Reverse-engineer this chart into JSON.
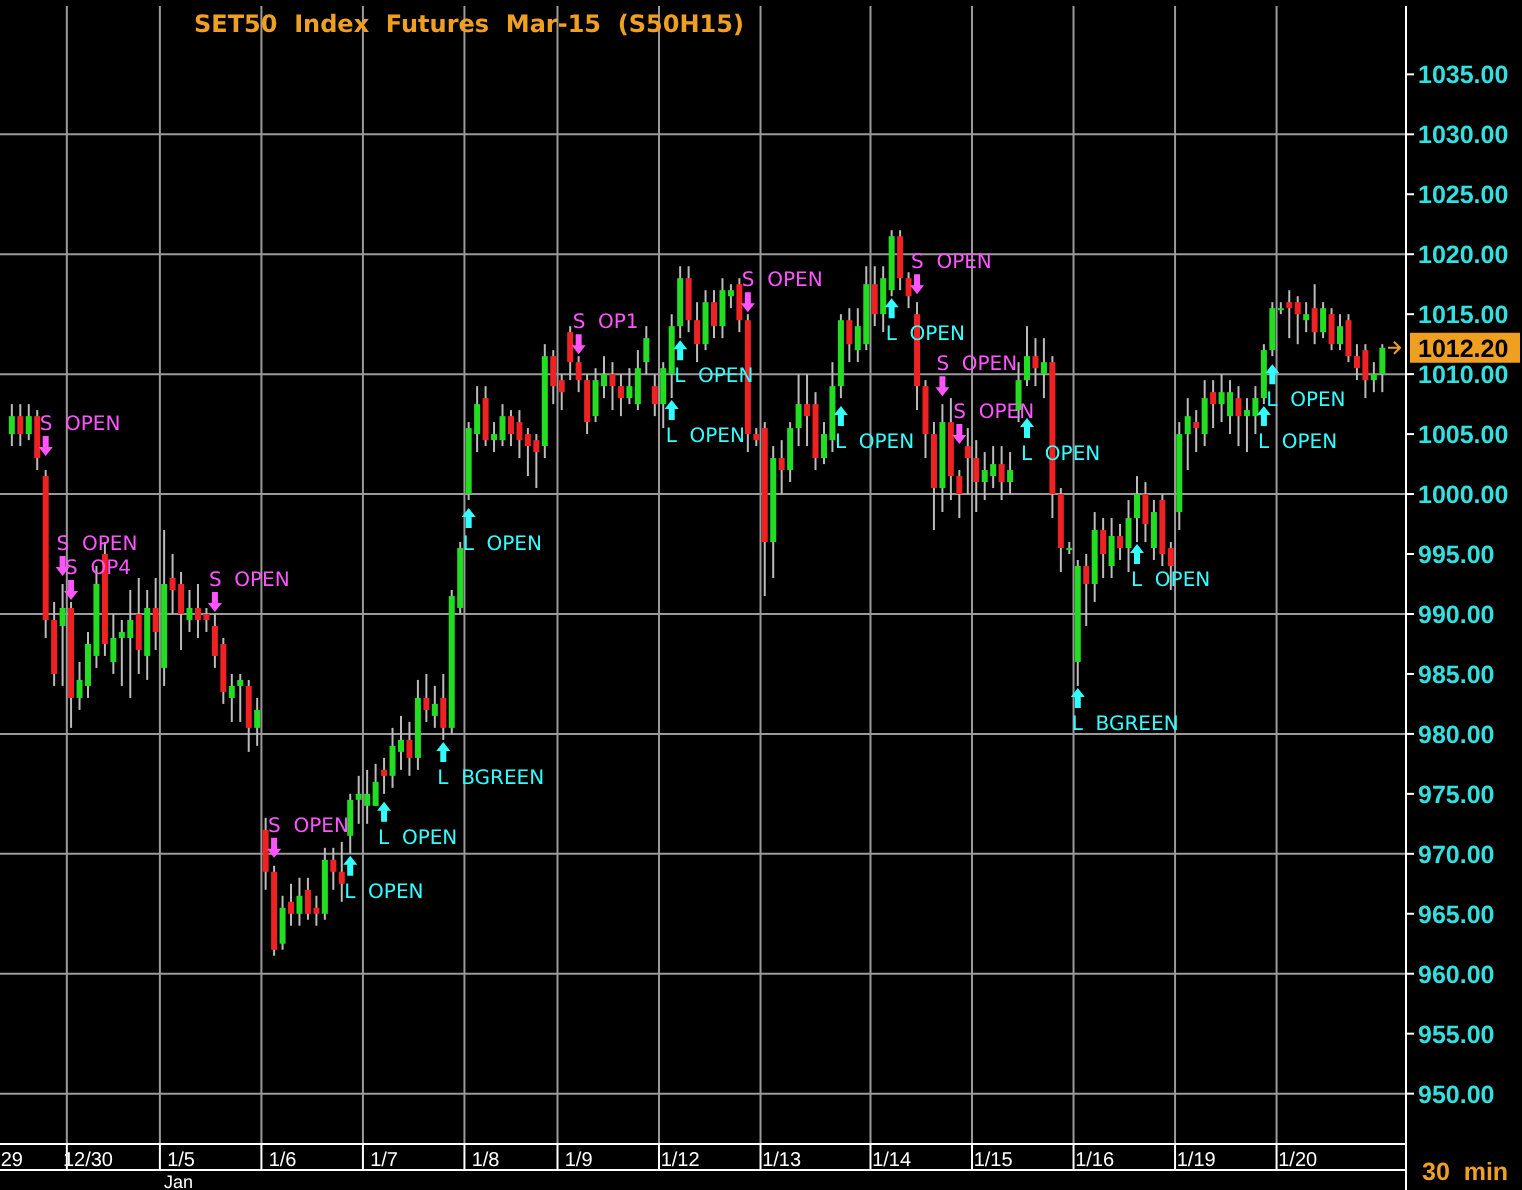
{
  "chart_data": {
    "type": "candlestick",
    "title": "SET50  Index  Futures  Mar-15  (S50H15)",
    "categories": [
      "29",
      null,
      null,
      null,
      null,
      null,
      null,
      null,
      null,
      "12/30",
      null,
      null,
      null,
      null,
      null,
      null,
      null,
      null,
      null,
      null,
      "1/5",
      null,
      null,
      null,
      null,
      null,
      null,
      null,
      null,
      null,
      null,
      null,
      "1/6",
      null,
      null,
      null,
      null,
      null,
      null,
      null,
      null,
      null,
      null,
      null,
      "1/7",
      null,
      null,
      null,
      null,
      null,
      null,
      null,
      null,
      null,
      null,
      null,
      "1/8",
      null,
      null,
      null,
      null,
      null,
      null,
      null,
      null,
      null,
      null,
      "1/9",
      null,
      null,
      null,
      null,
      null,
      null,
      null,
      null,
      null,
      null,
      null,
      "1/12",
      null,
      null,
      null,
      null,
      null,
      null,
      null,
      null,
      null,
      null,
      null,
      "1/13",
      null,
      null,
      null,
      null,
      null,
      null,
      null,
      null,
      null,
      null,
      null,
      null,
      "1/14",
      null,
      null,
      null,
      null,
      null,
      null,
      null,
      null,
      null,
      null,
      null,
      "1/15",
      null,
      null,
      null,
      null,
      null,
      null,
      null,
      null,
      null,
      null,
      null,
      "1/16",
      null,
      null,
      null,
      null,
      null,
      null,
      null,
      null,
      null,
      null,
      null,
      "1/19",
      null,
      null,
      null,
      null,
      null,
      null,
      null,
      null,
      null,
      null,
      null,
      "1/20",
      null,
      null,
      null,
      null,
      null,
      null,
      null,
      null,
      null,
      null
    ],
    "ohlc": [
      [
        1005,
        1007.5,
        1004,
        1006.5
      ],
      [
        1006.5,
        1007.5,
        1004,
        1005
      ],
      [
        1005,
        1007.5,
        1004.5,
        1006.5
      ],
      [
        1006.5,
        1007,
        1002,
        1003
      ],
      [
        1001.5,
        1002,
        988,
        989.5
      ],
      [
        989.5,
        991,
        984,
        985
      ],
      [
        989,
        992.5,
        984,
        990.5
      ],
      [
        990.5,
        991,
        980.5,
        983
      ],
      [
        983,
        986,
        982,
        984.5
      ],
      [
        984,
        988.5,
        983,
        987.5
      ],
      [
        986.5,
        994,
        985.5,
        992.5
      ],
      [
        995,
        996,
        986.5,
        987.5
      ],
      [
        986,
        990,
        985,
        988
      ],
      [
        988,
        989.5,
        984,
        988.5
      ],
      [
        988,
        992,
        983,
        989.5
      ],
      [
        990,
        993,
        985,
        987
      ],
      [
        986.5,
        992,
        984.5,
        990.5
      ],
      [
        990.5,
        993,
        987,
        988.5
      ],
      [
        985.5,
        997,
        984,
        992.5
      ],
      [
        993,
        995,
        990,
        992
      ],
      [
        992.5,
        993.5,
        987,
        990
      ],
      [
        989.5,
        992,
        988.5,
        990.5
      ],
      [
        990.5,
        992.5,
        988,
        989.5
      ],
      [
        990,
        990.5,
        988.5,
        989.5
      ],
      [
        989,
        990,
        985.5,
        986.5
      ],
      [
        987.5,
        988,
        982.5,
        983.5
      ],
      [
        983,
        985,
        981,
        984
      ],
      [
        984,
        985,
        981,
        984.5
      ],
      [
        984,
        984.5,
        978.5,
        980.5
      ],
      [
        980.5,
        983,
        979,
        982
      ],
      [
        972,
        973,
        967,
        968.5
      ],
      [
        968.5,
        969,
        961.5,
        962
      ],
      [
        962.5,
        966.5,
        962,
        965.5
      ],
      [
        966,
        967.5,
        964,
        965
      ],
      [
        965,
        968,
        964,
        966.5
      ],
      [
        967,
        968,
        964.5,
        965
      ],
      [
        965.5,
        966.5,
        964,
        965
      ],
      [
        965,
        970.5,
        964.5,
        969.5
      ],
      [
        969.5,
        970.5,
        967,
        968.5
      ],
      [
        968.5,
        971,
        966,
        967.5
      ],
      [
        971.5,
        975,
        970,
        974.5
      ],
      [
        974.5,
        976.5,
        972.5,
        975
      ],
      [
        974,
        977,
        972.5,
        975
      ],
      [
        974,
        977.5,
        974,
        976
      ],
      [
        977,
        978,
        975,
        976.5
      ],
      [
        976.5,
        980.5,
        975.5,
        979
      ],
      [
        978.5,
        981.5,
        977,
        979.5
      ],
      [
        979.5,
        981,
        976.5,
        978
      ],
      [
        978,
        984.5,
        977,
        983
      ],
      [
        983,
        985,
        981,
        982
      ],
      [
        981.5,
        984,
        980.5,
        982.5
      ],
      [
        983,
        985,
        979.5,
        980.5
      ],
      [
        980.5,
        992,
        980,
        991.5
      ],
      [
        990.5,
        996,
        990,
        995.5
      ],
      [
        1000,
        1006,
        999.5,
        1005.5
      ],
      [
        1005,
        1009,
        1003.5,
        1007.5
      ],
      [
        1008,
        1009,
        1004,
        1004.5
      ],
      [
        1004.5,
        1006,
        1003.5,
        1005
      ],
      [
        1004.5,
        1007.5,
        1004,
        1006.5
      ],
      [
        1006.5,
        1007,
        1004,
        1005
      ],
      [
        1006,
        1007,
        1003,
        1004.5
      ],
      [
        1005,
        1005.5,
        1001.5,
        1004
      ],
      [
        1004.5,
        1005,
        1000.5,
        1003.5
      ],
      [
        1004,
        1012.5,
        1003,
        1011.5
      ],
      [
        1011.5,
        1012,
        1007.5,
        1009
      ],
      [
        1009.5,
        1010,
        1007,
        1008.5
      ],
      [
        1013.5,
        1014,
        1009.5,
        1011
      ],
      [
        1011,
        1011.5,
        1008.5,
        1009.5
      ],
      [
        1009.5,
        1010,
        1005,
        1006
      ],
      [
        1006.5,
        1010.5,
        1006,
        1009.5
      ],
      [
        1009,
        1011.5,
        1008,
        1010
      ],
      [
        1010,
        1011,
        1007,
        1009
      ],
      [
        1009,
        1010,
        1006.5,
        1008
      ],
      [
        1008,
        1010.5,
        1007.5,
        1009
      ],
      [
        1007.5,
        1012,
        1007,
        1010.5
      ],
      [
        1011,
        1014,
        1010,
        1013
      ],
      [
        1009,
        1010,
        1006.5,
        1007.5
      ],
      [
        1007.5,
        1011,
        1005.5,
        1010.5
      ],
      [
        1010,
        1015,
        1008,
        1014
      ],
      [
        1014,
        1019,
        1013,
        1018
      ],
      [
        1018,
        1019,
        1013.5,
        1014.5
      ],
      [
        1014.5,
        1016,
        1011,
        1012.5
      ],
      [
        1012.5,
        1017,
        1012,
        1016
      ],
      [
        1016,
        1017,
        1013,
        1014
      ],
      [
        1014,
        1018,
        1013,
        1017
      ],
      [
        1016.5,
        1017.5,
        1015.5,
        1017
      ],
      [
        1017.5,
        1018,
        1013.5,
        1014.5
      ],
      [
        1014.5,
        1015,
        1003.5,
        1005
      ],
      [
        1005,
        1005.5,
        1004,
        1004.5
      ],
      [
        1005.5,
        1006,
        991.5,
        996
      ],
      [
        996,
        1004,
        993,
        1003
      ],
      [
        1003,
        1004.5,
        1000,
        1002
      ],
      [
        1002,
        1006,
        1001,
        1005.5
      ],
      [
        1005.5,
        1010,
        1004,
        1007.5
      ],
      [
        1007.5,
        1010,
        1004,
        1006.5
      ],
      [
        1007.5,
        1008.5,
        1002,
        1003
      ],
      [
        1003,
        1006,
        1002.5,
        1005
      ],
      [
        1004.5,
        1011,
        1003.5,
        1009
      ],
      [
        1009,
        1015,
        1008,
        1014.5
      ],
      [
        1014.5,
        1015.5,
        1011,
        1012.5
      ],
      [
        1012,
        1015.5,
        1011,
        1014
      ],
      [
        1012.5,
        1019,
        1012,
        1017.5
      ],
      [
        1017.5,
        1019,
        1014,
        1015
      ],
      [
        1015,
        1019,
        1013.5,
        1018
      ],
      [
        1017,
        1022,
        1016.5,
        1021.5
      ],
      [
        1021.5,
        1022,
        1017,
        1018
      ],
      [
        1018,
        1018.5,
        1015.5,
        1016.5
      ],
      [
        1015,
        1016,
        1007,
        1009
      ],
      [
        1009,
        1009.5,
        1003,
        1005
      ],
      [
        1005,
        1006,
        997,
        1000.5
      ],
      [
        1000.5,
        1007.5,
        998.5,
        1006
      ],
      [
        1006,
        1008,
        999.5,
        1001.5
      ],
      [
        1001.5,
        1002,
        998,
        1000
      ],
      [
        1004,
        1005.5,
        1000,
        1003
      ],
      [
        1003,
        1004.5,
        998.5,
        1001
      ],
      [
        1001,
        1003.5,
        999.5,
        1002
      ],
      [
        1001.5,
        1004,
        1000.5,
        1002.5
      ],
      [
        1002.5,
        1004,
        999.5,
        1001
      ],
      [
        1001,
        1003.5,
        1000,
        1002
      ],
      [
        1007,
        1011,
        1006,
        1009.5
      ],
      [
        1009.5,
        1014,
        1009,
        1011.5
      ],
      [
        1011.5,
        1013,
        1009,
        1010.5
      ],
      [
        1010,
        1013,
        1008,
        1011
      ],
      [
        1011,
        1011.5,
        998,
        1000
      ],
      [
        1000,
        1000.5,
        993.5,
        995.5
      ],
      [
        995.5,
        996,
        995,
        995.5
      ],
      [
        986,
        994.5,
        984,
        994
      ],
      [
        994,
        995,
        989,
        992.5
      ],
      [
        992.5,
        998.5,
        991,
        997
      ],
      [
        997,
        998,
        993,
        995
      ],
      [
        994,
        998,
        993,
        996.5
      ],
      [
        996.5,
        997.5,
        994.5,
        995.5
      ],
      [
        995.5,
        999.5,
        993.5,
        998
      ],
      [
        998,
        1001.5,
        996,
        1000
      ],
      [
        1000,
        1001,
        996,
        997.5
      ],
      [
        995.5,
        999.5,
        994.5,
        998.5
      ],
      [
        999.5,
        1000,
        994,
        995
      ],
      [
        995.5,
        996,
        992,
        994
      ],
      [
        998.5,
        1006,
        997,
        1005
      ],
      [
        1005,
        1008,
        1002,
        1006.5
      ],
      [
        1006,
        1007,
        1003.5,
        1005.5
      ],
      [
        1005,
        1009.5,
        1004,
        1008
      ],
      [
        1008.5,
        1009.5,
        1005.5,
        1007.5
      ],
      [
        1007.5,
        1010,
        1006,
        1008.5
      ],
      [
        1006.5,
        1009.5,
        1005,
        1008.5
      ],
      [
        1008,
        1009,
        1004,
        1006.5
      ],
      [
        1006.5,
        1008,
        1003.5,
        1007
      ],
      [
        1006.5,
        1009,
        1005,
        1008
      ],
      [
        1008,
        1012.5,
        1007.5,
        1012
      ],
      [
        1012,
        1016,
        1011.5,
        1015.5
      ],
      [
        1015.5,
        1016,
        1015,
        1015.5
      ],
      [
        1016,
        1017,
        1013,
        1015.5
      ],
      [
        1016,
        1016.5,
        1012.5,
        1015
      ],
      [
        1014.5,
        1016,
        1013.5,
        1015
      ],
      [
        1015.5,
        1017.5,
        1012.5,
        1013.5
      ],
      [
        1013.5,
        1016,
        1013,
        1015.5
      ],
      [
        1015,
        1015.5,
        1012,
        1012.5
      ],
      [
        1012.5,
        1015,
        1012,
        1014
      ],
      [
        1014.5,
        1015,
        1011,
        1011.5
      ],
      [
        1011.5,
        1012.5,
        1009.5,
        1010.5
      ],
      [
        1012,
        1012.5,
        1008,
        1009.5
      ],
      [
        1009.5,
        1011,
        1008.5,
        1010
      ],
      [
        1010,
        1012.5,
        1008.5,
        1012.2
      ]
    ],
    "series": [
      {
        "type": "scatter",
        "color": "#ff55ff",
        "values": [
          null,
          null,
          null,
          null,
          1004,
          null,
          994,
          992,
          null,
          null,
          null,
          null,
          null,
          null,
          null,
          null,
          null,
          null,
          null,
          null,
          null,
          null,
          null,
          null,
          991,
          null,
          null,
          null,
          null,
          null,
          null,
          970.5,
          null,
          null,
          null,
          null,
          null,
          null,
          null,
          null,
          null,
          null,
          null,
          null,
          null,
          null,
          null,
          null,
          null,
          null,
          null,
          null,
          null,
          null,
          null,
          null,
          null,
          null,
          null,
          null,
          null,
          null,
          null,
          null,
          null,
          null,
          null,
          1012.5,
          null,
          null,
          null,
          null,
          null,
          null,
          null,
          null,
          null,
          null,
          null,
          null,
          null,
          null,
          null,
          null,
          null,
          null,
          null,
          1016,
          null,
          null,
          null,
          null,
          null,
          null,
          null,
          null,
          null,
          null,
          null,
          null,
          null,
          null,
          null,
          null,
          null,
          null,
          null,
          1017.5,
          null,
          null,
          1009,
          null,
          1005,
          null,
          null,
          null,
          null,
          null,
          null,
          null,
          null,
          null,
          null,
          null,
          null,
          null,
          null,
          null,
          null,
          null,
          null,
          null,
          null,
          null,
          null,
          null,
          null,
          null,
          null,
          null,
          null,
          null,
          null,
          null,
          null,
          null,
          null,
          null,
          null,
          null,
          null,
          null,
          null,
          null,
          null,
          null,
          null,
          null,
          null,
          null,
          null,
          null,
          null
        ],
        "value_labels": [
          null,
          null,
          null,
          null,
          "S  OPEN",
          null,
          "S  OPEN",
          "S  OP4",
          null,
          null,
          null,
          null,
          null,
          null,
          null,
          null,
          null,
          null,
          null,
          null,
          null,
          null,
          null,
          null,
          "S  OPEN",
          null,
          null,
          null,
          null,
          null,
          null,
          "S  OPEN",
          null,
          null,
          null,
          null,
          null,
          null,
          null,
          null,
          null,
          null,
          null,
          null,
          null,
          null,
          null,
          null,
          null,
          null,
          null,
          null,
          null,
          null,
          null,
          null,
          null,
          null,
          null,
          null,
          null,
          null,
          null,
          null,
          null,
          null,
          null,
          "S  OP1",
          null,
          null,
          null,
          null,
          null,
          null,
          null,
          null,
          null,
          null,
          null,
          null,
          null,
          null,
          null,
          null,
          null,
          null,
          null,
          "S  OPEN",
          null,
          null,
          null,
          null,
          null,
          null,
          null,
          null,
          null,
          null,
          null,
          null,
          null,
          null,
          null,
          null,
          null,
          null,
          null,
          "S  OPEN",
          null,
          null,
          "S  OPEN",
          null,
          "S  OPEN",
          null,
          null,
          null,
          null,
          null,
          null,
          null,
          null,
          null,
          null,
          null,
          null,
          null,
          null,
          null,
          null,
          null,
          null,
          null,
          null,
          null,
          null,
          null,
          null,
          null,
          null,
          null,
          null,
          null,
          null,
          null,
          null,
          null,
          null,
          null,
          null,
          null,
          null,
          null,
          null,
          null,
          null,
          null,
          null,
          null,
          null,
          null,
          null,
          null,
          null
        ]
      },
      {
        "type": "scatter",
        "color": "#33ffff",
        "values": [
          null,
          null,
          null,
          null,
          null,
          null,
          null,
          null,
          null,
          null,
          null,
          null,
          null,
          null,
          null,
          null,
          null,
          null,
          null,
          null,
          null,
          null,
          null,
          null,
          null,
          null,
          null,
          null,
          null,
          null,
          null,
          null,
          null,
          null,
          null,
          null,
          null,
          null,
          null,
          null,
          969,
          null,
          null,
          null,
          973.5,
          null,
          null,
          null,
          null,
          null,
          null,
          978.5,
          null,
          null,
          998,
          null,
          null,
          null,
          null,
          null,
          null,
          null,
          null,
          null,
          null,
          null,
          null,
          null,
          null,
          null,
          null,
          null,
          null,
          null,
          null,
          null,
          null,
          null,
          1007,
          1012,
          null,
          null,
          null,
          null,
          null,
          null,
          null,
          null,
          null,
          null,
          null,
          null,
          null,
          null,
          null,
          null,
          null,
          null,
          1006.5,
          null,
          null,
          null,
          null,
          null,
          1015.5,
          null,
          null,
          null,
          null,
          null,
          null,
          null,
          null,
          null,
          null,
          null,
          null,
          null,
          null,
          null,
          1005.5,
          null,
          null,
          null,
          null,
          null,
          983,
          null,
          null,
          null,
          null,
          null,
          null,
          995,
          null,
          null,
          null,
          null,
          null,
          null,
          null,
          null,
          null,
          null,
          null,
          null,
          null,
          null,
          1006.5,
          1010,
          null,
          null,
          null,
          null,
          null,
          null,
          null,
          null,
          null,
          null,
          null,
          null,
          null
        ],
        "value_labels": [
          null,
          null,
          null,
          null,
          null,
          null,
          null,
          null,
          null,
          null,
          null,
          null,
          null,
          null,
          null,
          null,
          null,
          null,
          null,
          null,
          null,
          null,
          null,
          null,
          null,
          null,
          null,
          null,
          null,
          null,
          null,
          null,
          null,
          null,
          null,
          null,
          null,
          null,
          null,
          null,
          "L  OPEN",
          null,
          null,
          null,
          "L  OPEN",
          null,
          null,
          null,
          null,
          null,
          null,
          "L  BGREEN",
          null,
          null,
          "L  OPEN",
          null,
          null,
          null,
          null,
          null,
          null,
          null,
          null,
          null,
          null,
          null,
          null,
          null,
          null,
          null,
          null,
          null,
          null,
          null,
          null,
          null,
          null,
          null,
          "L  OPEN",
          "L  OPEN",
          null,
          null,
          null,
          null,
          null,
          null,
          null,
          null,
          null,
          null,
          null,
          null,
          null,
          null,
          null,
          null,
          null,
          null,
          "L  OPEN",
          null,
          null,
          null,
          null,
          null,
          "L  OPEN",
          null,
          null,
          null,
          null,
          null,
          null,
          null,
          null,
          null,
          null,
          null,
          null,
          null,
          null,
          null,
          "L  OPEN",
          null,
          null,
          null,
          null,
          null,
          "L  BGREEN",
          null,
          null,
          null,
          null,
          null,
          null,
          "L  OPEN",
          null,
          null,
          null,
          null,
          null,
          null,
          null,
          null,
          null,
          null,
          null,
          null,
          null,
          null,
          "L  OPEN",
          "L  OPEN",
          null,
          null,
          null,
          null,
          null,
          null,
          null,
          null,
          null,
          null,
          null,
          null,
          null
        ]
      }
    ],
    "annotations": [
      "1012.20",
      "Jan",
      "30  min"
    ],
    "ylim": [
      945.8,
      1040.7
    ],
    "yticks": [
      {
        "value": 950,
        "label": "950.00"
      },
      {
        "value": 955,
        "label": "955.00"
      },
      {
        "value": 960,
        "label": "960.00"
      },
      {
        "value": 965,
        "label": "965.00"
      },
      {
        "value": 970,
        "label": "970.00"
      },
      {
        "value": 975,
        "label": "975.00"
      },
      {
        "value": 980,
        "label": "980.00"
      },
      {
        "value": 985,
        "label": "985.00"
      },
      {
        "value": 990,
        "label": "990.00"
      },
      {
        "value": 995,
        "label": "995.00"
      },
      {
        "value": 1000,
        "label": "1000.00"
      },
      {
        "value": 1005,
        "label": "1005.00"
      },
      {
        "value": 1010,
        "label": "1010.00"
      },
      {
        "value": 1015,
        "label": "1015.00"
      },
      {
        "value": 1020,
        "label": "1020.00"
      },
      {
        "value": 1025,
        "label": "1025.00"
      },
      {
        "value": 1030,
        "label": "1030.00"
      },
      {
        "value": 1035,
        "label": "1035.00"
      }
    ],
    "grid": true
  }
}
